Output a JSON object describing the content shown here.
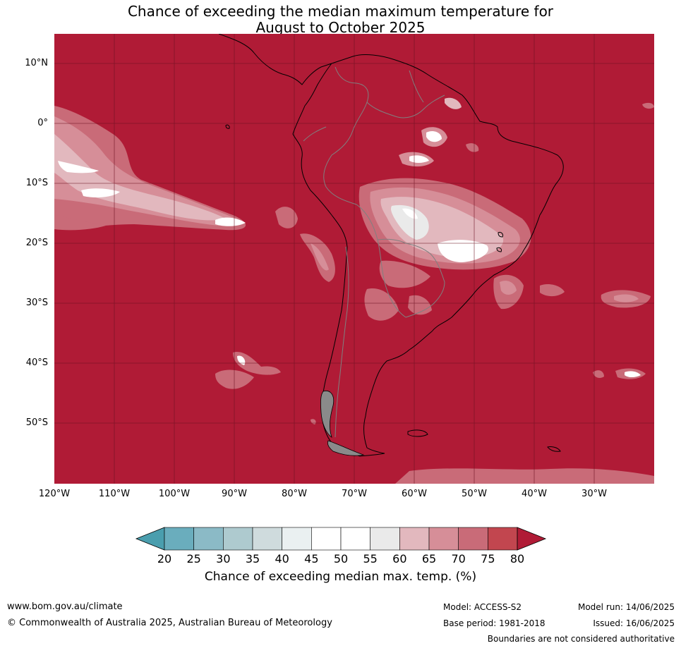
{
  "title_line1": "Chance of exceeding the median maximum temperature for",
  "title_line2": "August to October 2025",
  "lat_labels": [
    "10°N",
    "0°",
    "10°S",
    "20°S",
    "30°S",
    "40°S",
    "50°S"
  ],
  "lon_labels": [
    "120°W",
    "110°W",
    "100°W",
    "90°W",
    "80°W",
    "70°W",
    "60°W",
    "50°W",
    "40°W",
    "30°W"
  ],
  "colorbar": {
    "ticks": [
      "20",
      "25",
      "30",
      "35",
      "40",
      "45",
      "50",
      "55",
      "60",
      "65",
      "70",
      "75",
      "80"
    ],
    "colors": [
      "#4a9eae",
      "#6aadbd",
      "#8bbac6",
      "#aecacf",
      "#cfdbdd",
      "#eaf0f1",
      "#ffffff",
      "#ffffff",
      "#eaeaea",
      "#e2b8be",
      "#d68e98",
      "#c96b78",
      "#c2464f",
      "#b01b36"
    ],
    "label": "Chance of exceeding median max. temp. (%)"
  },
  "footer": {
    "website": "www.bom.gov.au/climate",
    "copyright": "© Commonwealth of Australia 2025, Australian Bureau of Meteorology",
    "model": "Model: ACCESS-S2",
    "base_period": "Base period: 1981-2018",
    "model_run": "Model run: 14/06/2025",
    "issued": "Issued: 16/06/2025",
    "disclaimer": "Boundaries are not considered authoritative"
  },
  "colors": {
    "map_fill": "#b01b36",
    "grid": "#6b1020",
    "coast": "#000000",
    "borders": "#808080"
  }
}
